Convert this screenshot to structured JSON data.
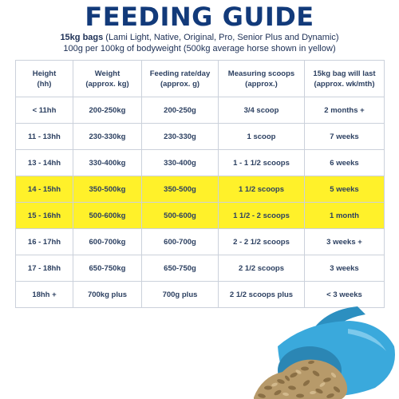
{
  "title": "FEEDING GUIDE",
  "subtitle": {
    "bold_part": "15kg bags",
    "rest": " (Lami Light, Native, Original, Pro, Senior Plus and Dynamic)"
  },
  "note": "100g per 100kg of bodyweight (500kg average horse shown in yellow)",
  "table": {
    "headers": [
      [
        "Height",
        "(hh)"
      ],
      [
        "Weight",
        "(approx. kg)"
      ],
      [
        "Feeding rate/day",
        "(approx. g)"
      ],
      [
        "Measuring scoops",
        "(approx.)"
      ],
      [
        "15kg bag will last",
        "(approx. wk/mth)"
      ]
    ],
    "rows": [
      {
        "cells": [
          "< 11hh",
          "200-250kg",
          "200-250g",
          "3/4 scoop",
          "2 months +"
        ],
        "highlight": false
      },
      {
        "cells": [
          "11 - 13hh",
          "230-330kg",
          "230-330g",
          "1 scoop",
          "7 weeks"
        ],
        "highlight": false
      },
      {
        "cells": [
          "13 - 14hh",
          "330-400kg",
          "330-400g",
          "1 - 1 1/2 scoops",
          "6 weeks"
        ],
        "highlight": false
      },
      {
        "cells": [
          "14 - 15hh",
          "350-500kg",
          "350-500g",
          "1 1/2 scoops",
          "5 weeks"
        ],
        "highlight": true
      },
      {
        "cells": [
          "15 - 16hh",
          "500-600kg",
          "500-600g",
          "1 1/2 - 2 scoops",
          "1 month"
        ],
        "highlight": true
      },
      {
        "cells": [
          "16 - 17hh",
          "600-700kg",
          "600-700g",
          "2 - 2 1/2 scoops",
          "3 weeks +"
        ],
        "highlight": false
      },
      {
        "cells": [
          "17 - 18hh",
          "650-750kg",
          "650-750g",
          "2 1/2 scoops",
          "3 weeks"
        ],
        "highlight": false
      },
      {
        "cells": [
          "18hh +",
          "700kg plus",
          "700g plus",
          "2 1/2 scoops plus",
          "< 3 weeks"
        ],
        "highlight": false
      }
    ]
  },
  "colors": {
    "title": "#123a7a",
    "highlight": "#fff12a",
    "scoop": "#3aa9dc",
    "pellets": "#b79a6a"
  },
  "image": {
    "icon": "measuring-scoop-with-pellets"
  }
}
